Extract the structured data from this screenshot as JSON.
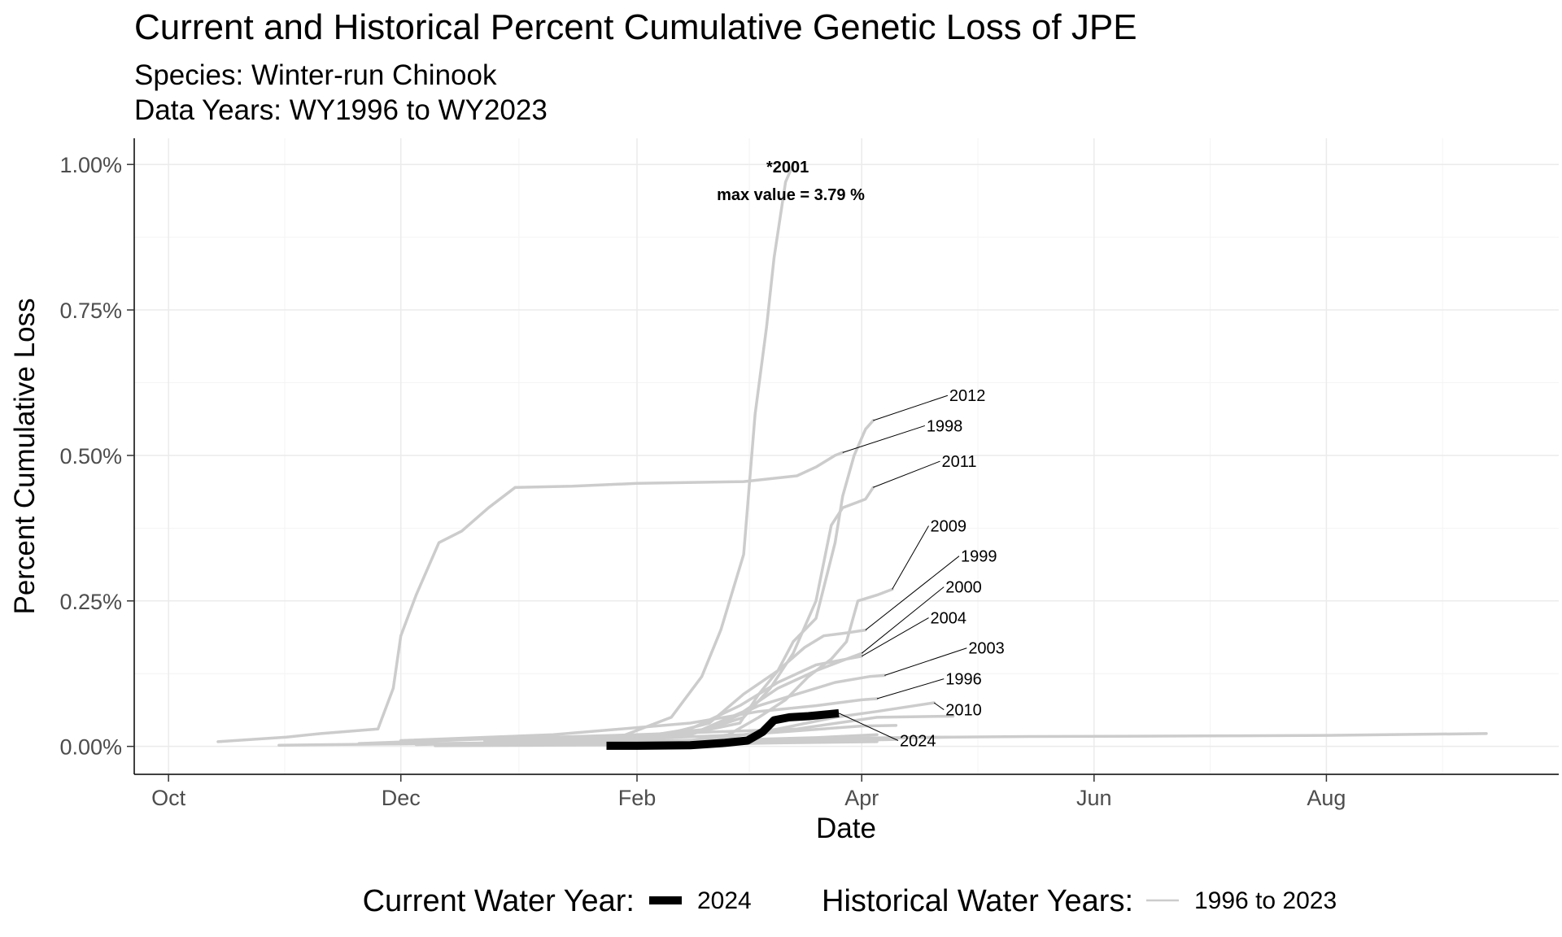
{
  "chart_data": {
    "type": "line",
    "title": "Current and Historical Percent Cumulative Genetic Loss of JPE",
    "subtitle_lines": [
      "Species: Winter-run Chinook",
      "Data Years: WY1996 to WY2023"
    ],
    "xlabel": "Date",
    "ylabel": "Percent Cumulative Loss",
    "x_ticks": [
      {
        "label": "Oct",
        "date": "10-01"
      },
      {
        "label": "Dec",
        "date": "12-01"
      },
      {
        "label": "Feb",
        "date": "02-01"
      },
      {
        "label": "Apr",
        "date": "04-01"
      },
      {
        "label": "Jun",
        "date": "06-01"
      },
      {
        "label": "Aug",
        "date": "08-01"
      }
    ],
    "xlim": [
      "09-22",
      "10-01"
    ],
    "y_ticks": [
      {
        "label": "0.00%",
        "value": 0
      },
      {
        "label": "0.25%",
        "value": 0.25
      },
      {
        "label": "0.50%",
        "value": 0.5
      },
      {
        "label": "0.75%",
        "value": 0.75
      },
      {
        "label": "1.00%",
        "value": 1.0
      }
    ],
    "ylim": [
      -0.048,
      1.045
    ],
    "grid": true,
    "legend": {
      "placement": "bottom",
      "current_title": "Current Water Year:",
      "current_label": "2024",
      "historical_title": "Historical Water Years:",
      "historical_label": "1996 to 2023"
    },
    "annotation": {
      "year": "*2001",
      "text": "max value = 3.79 %"
    },
    "colors": {
      "current": "#000000",
      "historical": "#cccccc",
      "grid": "#ebebeb"
    },
    "series": [
      {
        "name": "2001",
        "points": [
          [
            "12-23",
            0.01
          ],
          [
            "01-27",
            0.015
          ],
          [
            "02-10",
            0.05
          ],
          [
            "02-18",
            0.12
          ],
          [
            "02-23",
            0.2
          ],
          [
            "03-01",
            0.33
          ],
          [
            "03-04",
            0.57
          ],
          [
            "03-07",
            0.72
          ],
          [
            "03-09",
            0.84
          ],
          [
            "03-12",
            0.97
          ],
          [
            "03-14",
            1.0
          ]
        ]
      },
      {
        "name": "1998",
        "points": [
          [
            "10-14",
            0.008
          ],
          [
            "11-01",
            0.016
          ],
          [
            "11-10",
            0.022
          ],
          [
            "11-25",
            0.03
          ],
          [
            "11-29",
            0.1
          ],
          [
            "12-01",
            0.19
          ],
          [
            "12-05",
            0.26
          ],
          [
            "12-11",
            0.35
          ],
          [
            "12-17",
            0.37
          ],
          [
            "12-24",
            0.41
          ],
          [
            "12-31",
            0.445
          ],
          [
            "01-15",
            0.447
          ],
          [
            "02-01",
            0.452
          ],
          [
            "03-01",
            0.455
          ],
          [
            "03-15",
            0.465
          ],
          [
            "03-20",
            0.48
          ],
          [
            "03-25",
            0.5
          ],
          [
            "03-27",
            0.505
          ]
        ]
      },
      {
        "name": "2012",
        "points": [
          [
            "01-20",
            0.01
          ],
          [
            "02-10",
            0.015
          ],
          [
            "02-28",
            0.04
          ],
          [
            "03-05",
            0.09
          ],
          [
            "03-10",
            0.13
          ],
          [
            "03-14",
            0.18
          ],
          [
            "03-20",
            0.22
          ],
          [
            "03-25",
            0.35
          ],
          [
            "03-27",
            0.43
          ],
          [
            "03-30",
            0.5
          ],
          [
            "04-02",
            0.545
          ],
          [
            "04-04",
            0.56
          ]
        ]
      },
      {
        "name": "2011",
        "points": [
          [
            "01-25",
            0.01
          ],
          [
            "02-15",
            0.02
          ],
          [
            "03-01",
            0.05
          ],
          [
            "03-08",
            0.1
          ],
          [
            "03-14",
            0.16
          ],
          [
            "03-20",
            0.25
          ],
          [
            "03-24",
            0.38
          ],
          [
            "03-27",
            0.41
          ],
          [
            "03-31",
            0.42
          ],
          [
            "04-02",
            0.425
          ],
          [
            "04-04",
            0.445
          ]
        ]
      },
      {
        "name": "2009",
        "points": [
          [
            "02-10",
            0.005
          ],
          [
            "02-25",
            0.02
          ],
          [
            "03-05",
            0.05
          ],
          [
            "03-12",
            0.08
          ],
          [
            "03-18",
            0.12
          ],
          [
            "03-24",
            0.15
          ],
          [
            "03-28",
            0.18
          ],
          [
            "03-31",
            0.25
          ],
          [
            "04-05",
            0.26
          ],
          [
            "04-09",
            0.27
          ]
        ]
      },
      {
        "name": "1999",
        "points": [
          [
            "01-05",
            0.01
          ],
          [
            "02-05",
            0.015
          ],
          [
            "02-20",
            0.04
          ],
          [
            "03-01",
            0.09
          ],
          [
            "03-10",
            0.13
          ],
          [
            "03-17",
            0.17
          ],
          [
            "03-22",
            0.19
          ],
          [
            "03-28",
            0.195
          ],
          [
            "04-02",
            0.2
          ]
        ]
      },
      {
        "name": "2000",
        "points": [
          [
            "01-10",
            0.01
          ],
          [
            "02-01",
            0.015
          ],
          [
            "02-15",
            0.03
          ],
          [
            "02-28",
            0.07
          ],
          [
            "03-10",
            0.11
          ],
          [
            "03-20",
            0.14
          ],
          [
            "03-28",
            0.15
          ],
          [
            "04-01",
            0.16
          ]
        ]
      },
      {
        "name": "2004",
        "points": [
          [
            "01-15",
            0.005
          ],
          [
            "02-15",
            0.02
          ],
          [
            "03-01",
            0.06
          ],
          [
            "03-10",
            0.1
          ],
          [
            "03-20",
            0.13
          ],
          [
            "03-28",
            0.15
          ],
          [
            "04-01",
            0.155
          ]
        ]
      },
      {
        "name": "2003",
        "points": [
          [
            "01-20",
            0.01
          ],
          [
            "02-20",
            0.03
          ],
          [
            "03-05",
            0.07
          ],
          [
            "03-15",
            0.09
          ],
          [
            "03-25",
            0.11
          ],
          [
            "04-03",
            0.12
          ],
          [
            "04-07",
            0.122
          ]
        ]
      },
      {
        "name": "1996",
        "points": [
          [
            "12-01",
            0.01
          ],
          [
            "01-10",
            0.02
          ],
          [
            "02-15",
            0.04
          ],
          [
            "03-05",
            0.06
          ],
          [
            "03-20",
            0.07
          ],
          [
            "04-01",
            0.08
          ],
          [
            "04-05",
            0.082
          ]
        ]
      },
      {
        "name": "2010",
        "points": [
          [
            "01-25",
            0.005
          ],
          [
            "02-20",
            0.01
          ],
          [
            "03-10",
            0.03
          ],
          [
            "03-25",
            0.05
          ],
          [
            "04-05",
            0.06
          ],
          [
            "04-20",
            0.075
          ]
        ]
      },
      {
        "name": "",
        "points": [
          [
            "11-20",
            0.005
          ],
          [
            "12-20",
            0.012
          ],
          [
            "02-01",
            0.02
          ],
          [
            "03-15",
            0.03
          ],
          [
            "04-05",
            0.05
          ],
          [
            "04-25",
            0.052
          ]
        ]
      },
      {
        "name": "",
        "points": [
          [
            "12-05",
            0.003
          ],
          [
            "01-20",
            0.01
          ],
          [
            "03-01",
            0.02
          ],
          [
            "04-01",
            0.035
          ],
          [
            "04-10",
            0.036
          ]
        ]
      },
      {
        "name": "",
        "points": [
          [
            "01-01",
            0.002
          ],
          [
            "02-15",
            0.008
          ],
          [
            "03-15",
            0.012
          ],
          [
            "04-15",
            0.015
          ],
          [
            "04-25",
            0.016
          ]
        ]
      },
      {
        "name": "",
        "points": [
          [
            "10-30",
            0.002
          ],
          [
            "12-10",
            0.005
          ],
          [
            "01-20",
            0.008
          ],
          [
            "03-01",
            0.012
          ],
          [
            "04-10",
            0.015
          ],
          [
            "05-15",
            0.017
          ],
          [
            "06-30",
            0.018
          ],
          [
            "08-01",
            0.019
          ],
          [
            "09-12",
            0.022
          ]
        ]
      },
      {
        "name": "",
        "points": [
          [
            "12-10",
            0.001
          ],
          [
            "02-10",
            0.003
          ],
          [
            "03-10",
            0.006
          ],
          [
            "04-05",
            0.008
          ]
        ]
      },
      {
        "name": "",
        "points": [
          [
            "11-25",
            0.004
          ],
          [
            "01-05",
            0.006
          ],
          [
            "02-20",
            0.01
          ],
          [
            "03-20",
            0.015
          ],
          [
            "04-05",
            0.02
          ]
        ]
      },
      {
        "name": "",
        "points": [
          [
            "12-15",
            0.002
          ],
          [
            "02-15",
            0.005
          ],
          [
            "03-20",
            0.009
          ],
          [
            "04-10",
            0.012
          ]
        ]
      }
    ],
    "current_series": {
      "name": "2024",
      "points": [
        [
          "01-24",
          0.001
        ],
        [
          "02-01",
          0.001
        ],
        [
          "02-15",
          0.002
        ],
        [
          "02-24",
          0.006
        ],
        [
          "03-02",
          0.01
        ],
        [
          "03-06",
          0.025
        ],
        [
          "03-09",
          0.045
        ],
        [
          "03-13",
          0.05
        ],
        [
          "03-18",
          0.052
        ],
        [
          "03-26",
          0.057
        ]
      ]
    },
    "labels": [
      {
        "text": "2012",
        "series_end": "2012",
        "x": "04-24",
        "y": 0.603
      },
      {
        "text": "1998",
        "series_end": "1998",
        "x": "04-18",
        "y": 0.551
      },
      {
        "text": "2011",
        "series_end": "2011",
        "x": "04-22",
        "y": 0.49
      },
      {
        "text": "2009",
        "series_end": "2009",
        "x": "04-19",
        "y": 0.379
      },
      {
        "text": "1999",
        "series_end": "1999",
        "x": "04-27",
        "y": 0.327
      },
      {
        "text": "2000",
        "series_end": "2000",
        "x": "04-23",
        "y": 0.274
      },
      {
        "text": "2004",
        "series_end": "2004",
        "x": "04-19",
        "y": 0.221
      },
      {
        "text": "2003",
        "series_end": "2003",
        "x": "04-29",
        "y": 0.169
      },
      {
        "text": "1996",
        "series_end": "1996",
        "x": "04-23",
        "y": 0.116
      },
      {
        "text": "2010",
        "series_end": "2010",
        "x": "04-23",
        "y": 0.063
      },
      {
        "text": "2024",
        "series_end": "2024",
        "x": "04-11",
        "y": 0.01
      }
    ]
  }
}
